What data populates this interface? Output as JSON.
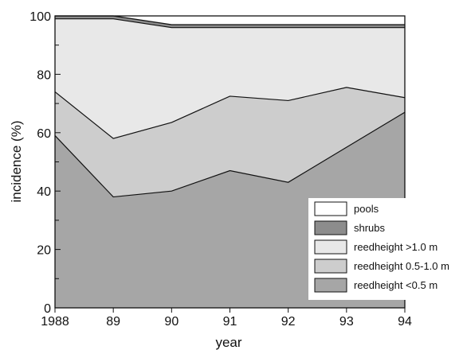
{
  "chart_data": {
    "type": "area",
    "stacked": true,
    "x_labels": [
      "1988",
      "89",
      "90",
      "91",
      "92",
      "93",
      "94"
    ],
    "x_values": [
      1988,
      1989,
      1990,
      1991,
      1992,
      1993,
      1994
    ],
    "xlabel": "year",
    "ylabel": "incidence (%)",
    "ylim": [
      0,
      100
    ],
    "y_ticks": [
      0,
      20,
      40,
      60,
      80,
      100
    ],
    "grid": false,
    "legend_position": "bottom-right",
    "series": [
      {
        "name": "reedheight <0.5 m",
        "color": "#a6a6a6",
        "cumulative": [
          59,
          38,
          40,
          47,
          43,
          55,
          67
        ]
      },
      {
        "name": "reedheight 0.5-1.0 m",
        "color": "#cdcdcd",
        "cumulative": [
          74,
          58,
          63.5,
          72.5,
          71,
          75.5,
          72
        ]
      },
      {
        "name": "reedheight >1.0 m",
        "color": "#e8e8e8",
        "cumulative": [
          99,
          99,
          96,
          96,
          96,
          96,
          96
        ]
      },
      {
        "name": "shrubs",
        "color": "#8c8c8c",
        "cumulative": [
          100,
          100,
          97,
          97,
          97,
          97,
          97
        ]
      },
      {
        "name": "pools",
        "color": "#ffffff",
        "cumulative": [
          100,
          100,
          100,
          100,
          100,
          100,
          100
        ]
      }
    ],
    "legend_order": [
      "pools",
      "shrubs",
      "reedheight >1.0 m",
      "reedheight 0.5-1.0 m",
      "reedheight <0.5 m"
    ]
  }
}
